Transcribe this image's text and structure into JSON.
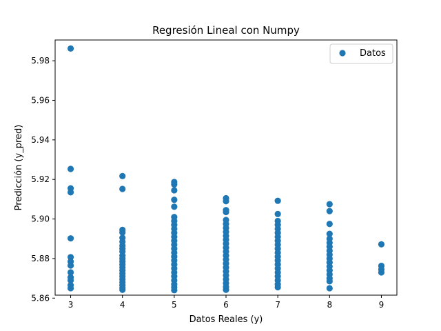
{
  "chart_data": {
    "type": "scatter",
    "title": "Regresión Lineal con Numpy",
    "xlabel": "Datos Reales (y)",
    "ylabel": "Predicción (y_pred)",
    "xlim": [
      2.7,
      9.3
    ],
    "ylim": [
      5.8615,
      5.9905
    ],
    "x_ticks": [
      "3",
      "4",
      "5",
      "6",
      "7",
      "8",
      "9"
    ],
    "y_ticks": [
      "5.86",
      "5.88",
      "5.90",
      "5.92",
      "5.94",
      "5.96",
      "5.98"
    ],
    "grid": false,
    "legend": {
      "placement": "top-right",
      "entries": [
        "Datos"
      ]
    },
    "series": [
      {
        "name": "Datos",
        "color": "#1f77b4",
        "points": [
          [
            3,
            5.9862
          ],
          [
            3,
            5.9253
          ],
          [
            3,
            5.9155
          ],
          [
            3,
            5.9135
          ],
          [
            3,
            5.8902
          ],
          [
            3,
            5.8807
          ],
          [
            3,
            5.8785
          ],
          [
            3,
            5.8765
          ],
          [
            3,
            5.873
          ],
          [
            3,
            5.8705
          ],
          [
            3,
            5.869
          ],
          [
            3,
            5.8665
          ],
          [
            3,
            5.865
          ],
          [
            4,
            5.9217
          ],
          [
            4,
            5.9152
          ],
          [
            4,
            5.8945
          ],
          [
            4,
            5.8932
          ],
          [
            4,
            5.8905
          ],
          [
            4,
            5.8885
          ],
          [
            4,
            5.8865
          ],
          [
            4,
            5.885
          ],
          [
            4,
            5.8835
          ],
          [
            4,
            5.8815
          ],
          [
            4,
            5.88
          ],
          [
            4,
            5.8785
          ],
          [
            4,
            5.877
          ],
          [
            4,
            5.8755
          ],
          [
            4,
            5.874
          ],
          [
            4,
            5.8725
          ],
          [
            4,
            5.871
          ],
          [
            4,
            5.8695
          ],
          [
            4,
            5.868
          ],
          [
            4,
            5.8665
          ],
          [
            4,
            5.8652
          ],
          [
            4,
            5.8642
          ],
          [
            5,
            5.9187
          ],
          [
            5,
            5.9175
          ],
          [
            5,
            5.9145
          ],
          [
            5,
            5.9097
          ],
          [
            5,
            5.9062
          ],
          [
            5,
            5.901
          ],
          [
            5,
            5.899
          ],
          [
            5,
            5.897
          ],
          [
            5,
            5.895
          ],
          [
            5,
            5.893
          ],
          [
            5,
            5.891
          ],
          [
            5,
            5.889
          ],
          [
            5,
            5.887
          ],
          [
            5,
            5.885
          ],
          [
            5,
            5.883
          ],
          [
            5,
            5.881
          ],
          [
            5,
            5.879
          ],
          [
            5,
            5.877
          ],
          [
            5,
            5.875
          ],
          [
            5,
            5.873
          ],
          [
            5,
            5.871
          ],
          [
            5,
            5.869
          ],
          [
            5,
            5.867
          ],
          [
            5,
            5.8655
          ],
          [
            5,
            5.864
          ],
          [
            6,
            5.9105
          ],
          [
            6,
            5.909
          ],
          [
            6,
            5.9045
          ],
          [
            6,
            5.9035
          ],
          [
            6,
            5.8995
          ],
          [
            6,
            5.8975
          ],
          [
            6,
            5.8955
          ],
          [
            6,
            5.8935
          ],
          [
            6,
            5.8915
          ],
          [
            6,
            5.8895
          ],
          [
            6,
            5.8875
          ],
          [
            6,
            5.8855
          ],
          [
            6,
            5.8835
          ],
          [
            6,
            5.8815
          ],
          [
            6,
            5.8795
          ],
          [
            6,
            5.8775
          ],
          [
            6,
            5.8755
          ],
          [
            6,
            5.8735
          ],
          [
            6,
            5.8715
          ],
          [
            6,
            5.8695
          ],
          [
            6,
            5.8675
          ],
          [
            6,
            5.8657
          ],
          [
            6,
            5.8642
          ],
          [
            7,
            5.9092
          ],
          [
            7,
            5.9025
          ],
          [
            7,
            5.899
          ],
          [
            7,
            5.897
          ],
          [
            7,
            5.895
          ],
          [
            7,
            5.893
          ],
          [
            7,
            5.891
          ],
          [
            7,
            5.889
          ],
          [
            7,
            5.887
          ],
          [
            7,
            5.885
          ],
          [
            7,
            5.883
          ],
          [
            7,
            5.881
          ],
          [
            7,
            5.879
          ],
          [
            7,
            5.877
          ],
          [
            7,
            5.875
          ],
          [
            7,
            5.873
          ],
          [
            7,
            5.871
          ],
          [
            7,
            5.869
          ],
          [
            7,
            5.867
          ],
          [
            7,
            5.8655
          ],
          [
            8,
            5.9075
          ],
          [
            8,
            5.904
          ],
          [
            8,
            5.8975
          ],
          [
            8,
            5.8925
          ],
          [
            8,
            5.89
          ],
          [
            8,
            5.888
          ],
          [
            8,
            5.886
          ],
          [
            8,
            5.884
          ],
          [
            8,
            5.882
          ],
          [
            8,
            5.88
          ],
          [
            8,
            5.878
          ],
          [
            8,
            5.876
          ],
          [
            8,
            5.874
          ],
          [
            8,
            5.872
          ],
          [
            8,
            5.87
          ],
          [
            8,
            5.8685
          ],
          [
            8,
            5.865
          ],
          [
            9,
            5.8872
          ],
          [
            9,
            5.8763
          ],
          [
            9,
            5.8745
          ],
          [
            9,
            5.873
          ]
        ]
      }
    ]
  }
}
